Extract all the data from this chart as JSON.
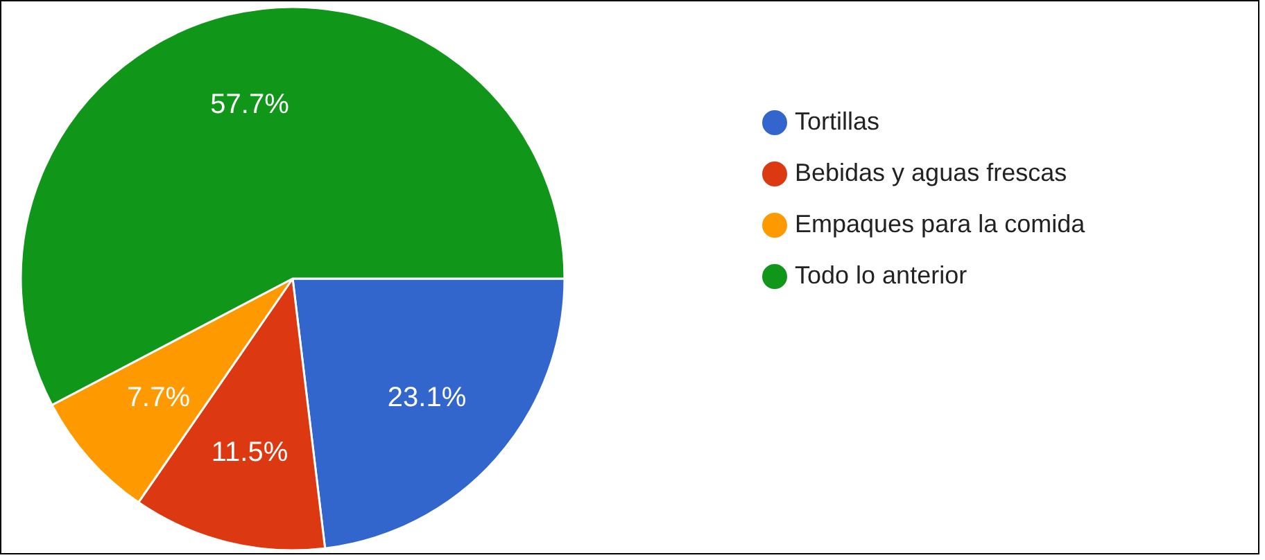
{
  "chart_data": {
    "type": "pie",
    "categories": [
      "Tortillas",
      "Bebidas y aguas frescas",
      "Empaques para la comida",
      "Todo lo anterior"
    ],
    "values": [
      23.1,
      11.5,
      7.7,
      57.7
    ],
    "colors": [
      "#3366cc",
      "#dc3912",
      "#ff9900",
      "#109618"
    ],
    "value_labels": [
      "23.1%",
      "11.5%",
      "7.7%",
      "57.7%"
    ],
    "legend": "right"
  }
}
